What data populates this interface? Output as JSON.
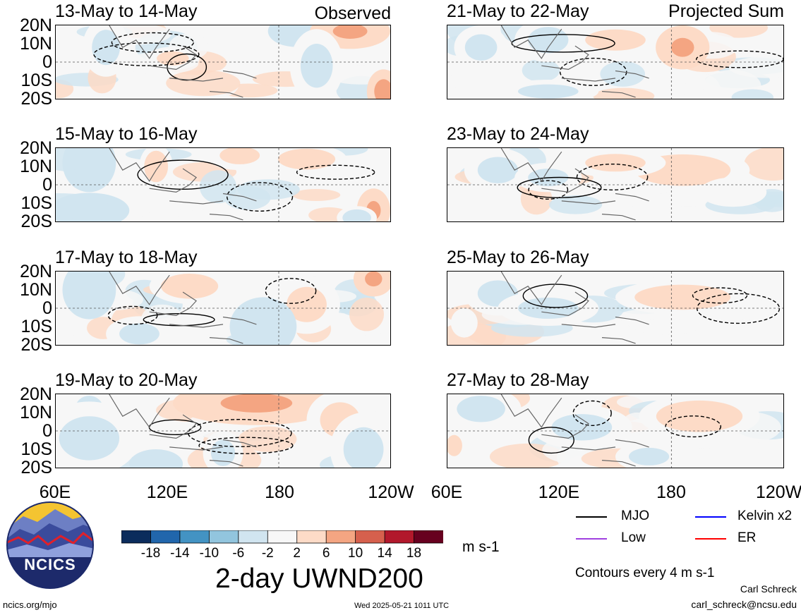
{
  "panels": [
    {
      "id": "p1",
      "title": "13-May to 14-May",
      "tag": "Observed"
    },
    {
      "id": "p2",
      "title": "15-May to 16-May",
      "tag": ""
    },
    {
      "id": "p3",
      "title": "17-May to 18-May",
      "tag": ""
    },
    {
      "id": "p4",
      "title": "19-May to 20-May",
      "tag": ""
    },
    {
      "id": "p5",
      "title": "21-May to 22-May",
      "tag": "Projected Sum"
    },
    {
      "id": "p6",
      "title": "23-May to 24-May",
      "tag": ""
    },
    {
      "id": "p7",
      "title": "25-May to 26-May",
      "tag": ""
    },
    {
      "id": "p8",
      "title": "27-May to 28-May",
      "tag": ""
    }
  ],
  "lat_labels": [
    "20N",
    "10N",
    "0",
    "10S",
    "20S"
  ],
  "lon_labels": [
    "60E",
    "120E",
    "180",
    "120W"
  ],
  "colorbar": {
    "colors": [
      "#0b2c5c",
      "#2166ac",
      "#4393c3",
      "#92c5de",
      "#d1e5f0",
      "#f7f7f7",
      "#fddbc7",
      "#f4a582",
      "#d6604d",
      "#b2182b",
      "#67001f"
    ],
    "tick_labels": [
      "-18",
      "-14",
      "-10",
      "-6",
      "-2",
      "2",
      "6",
      "10",
      "14",
      "18"
    ],
    "units": "m s-1"
  },
  "main_title": "2-day UWND200",
  "legend": {
    "items": [
      {
        "label": "MJO",
        "color": "#000000"
      },
      {
        "label": "Kelvin x2",
        "color": "#0000ff"
      },
      {
        "label": "Low",
        "color": "#a040e0"
      },
      {
        "label": "ER",
        "color": "#ff0000"
      }
    ],
    "contour_note": "Contours every 4 m s-1"
  },
  "logo": {
    "text": "NCICS"
  },
  "footer": {
    "url": "ncics.org/mjo",
    "timestamp": "Wed 2025-05-21 1011 UTC",
    "author": "Carl Schreck",
    "email": "carl_schreck@ncsu.edu"
  }
}
